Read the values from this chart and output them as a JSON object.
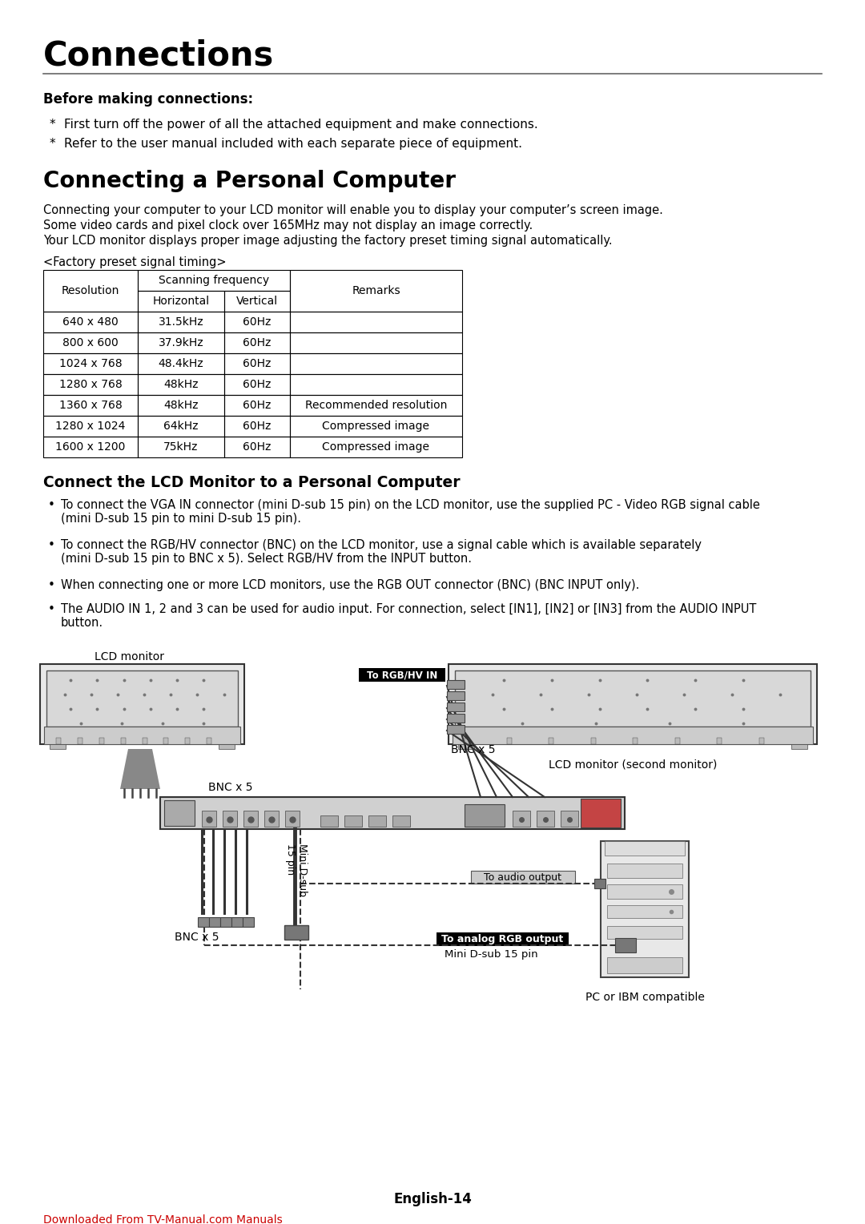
{
  "title": "Connections",
  "bg_color": "#ffffff",
  "title_color": "#000000",
  "page_width": 10.8,
  "page_height": 15.28,
  "section1_title": "Before making connections:",
  "section1_bullets": [
    "First turn off the power of all the attached equipment and make connections.",
    "Refer to the user manual included with each separate piece of equipment."
  ],
  "section2_title": "Connecting a Personal Computer",
  "section2_body": [
    "Connecting your computer to your LCD monitor will enable you to display your computer’s screen image.",
    "Some video cards and pixel clock over 165MHz may not display an image correctly.",
    "Your LCD monitor displays proper image adjusting the factory preset timing signal automatically."
  ],
  "table_caption": "<Factory preset signal timing>",
  "table_rows": [
    [
      "640 x 480",
      "31.5kHz",
      "60Hz",
      ""
    ],
    [
      "800 x 600",
      "37.9kHz",
      "60Hz",
      ""
    ],
    [
      "1024 x 768",
      "48.4kHz",
      "60Hz",
      ""
    ],
    [
      "1280 x 768",
      "48kHz",
      "60Hz",
      ""
    ],
    [
      "1360 x 768",
      "48kHz",
      "60Hz",
      "Recommended resolution"
    ],
    [
      "1280 x 1024",
      "64kHz",
      "60Hz",
      "Compressed image"
    ],
    [
      "1600 x 1200",
      "75kHz",
      "60Hz",
      "Compressed image"
    ]
  ],
  "section3_title": "Connect the LCD Monitor to a Personal Computer",
  "section3_bullets": [
    "To connect the VGA IN connector (mini D-sub 15 pin) on the LCD monitor, use the supplied PC - Video RGB signal cable\n(mini D-sub 15 pin to mini D-sub 15 pin).",
    "To connect the RGB/HV connector (BNC) on the LCD monitor, use a signal cable which is available separately\n(mini D-sub 15 pin to BNC x 5). Select RGB/HV from the INPUT button.",
    "When connecting one or more LCD monitors, use the RGB OUT connector (BNC) (BNC INPUT only).",
    "The AUDIO IN 1, 2 and 3 can be used for audio input. For connection, select [IN1], [IN2] or [IN3] from the AUDIO INPUT\nbutton."
  ],
  "footer_text": "English-14",
  "footer_link": "Downloaded From TV-Manual.com Manuals",
  "footer_link_color": "#cc0000"
}
